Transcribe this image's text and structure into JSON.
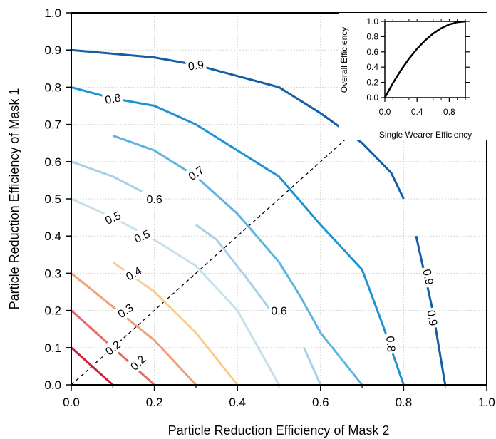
{
  "chart_data": [
    {
      "type": "line",
      "subtype": "contour",
      "xlabel": "Particle Reduction Efficiency of Mask 2",
      "ylabel": "Particle Reduction Efficiency of Mask 1",
      "xlim": [
        0,
        1
      ],
      "ylim": [
        0,
        1
      ],
      "x_ticks": [
        "0.0",
        "0.2",
        "0.4",
        "0.6",
        "0.8",
        "1.0"
      ],
      "y_ticks": [
        "0.0",
        "0.1",
        "0.2",
        "0.3",
        "0.4",
        "0.5",
        "0.6",
        "0.7",
        "0.8",
        "0.9",
        "1.0"
      ],
      "grid": true,
      "diagonal_reference": {
        "style": "dashed",
        "color": "#000000",
        "from": [
          0,
          0
        ],
        "to": [
          0.7,
          0.7
        ]
      },
      "series": [
        {
          "level": "0.1",
          "color": "#c8223a",
          "points": [
            [
              0.0,
              0.1
            ],
            [
              0.1,
              0.0
            ]
          ]
        },
        {
          "level": "0.2",
          "color": "#e26a62",
          "points": [
            [
              0.0,
              0.2
            ],
            [
              0.2,
              0.0
            ]
          ]
        },
        {
          "level": "0.3",
          "color": "#f0a07a",
          "points": [
            [
              0.0,
              0.3
            ],
            [
              0.1,
              0.21
            ],
            [
              0.2,
              0.12
            ],
            [
              0.3,
              0.0
            ]
          ]
        },
        {
          "level": "0.4",
          "color": "#f8ce90",
          "points": [
            [
              0.1,
              0.33
            ],
            [
              0.2,
              0.25
            ],
            [
              0.3,
              0.14
            ],
            [
              0.4,
              0.0
            ]
          ]
        },
        {
          "level": "0.5",
          "color": "#c6e1ee",
          "points": [
            [
              0.0,
              0.5
            ],
            [
              0.1,
              0.45
            ],
            [
              0.2,
              0.39
            ],
            [
              0.3,
              0.32
            ],
            [
              0.4,
              0.2
            ],
            [
              0.5,
              0.0
            ]
          ]
        },
        {
          "level": "0.6",
          "color": "#a6d1e8",
          "points": [
            [
              0.0,
              0.6
            ],
            [
              0.1,
              0.56
            ],
            [
              0.17,
              0.52
            ]
          ]
        },
        {
          "level": "0.6",
          "color": "#a6d1e8",
          "points": [
            [
              0.3,
              0.43
            ],
            [
              0.35,
              0.39
            ],
            [
              0.42,
              0.29
            ],
            [
              0.48,
              0.2
            ]
          ]
        },
        {
          "level": "0.6",
          "color": "#a6d1e8",
          "points": [
            [
              0.56,
              0.1
            ],
            [
              0.6,
              0.0
            ]
          ]
        },
        {
          "level": "0.7",
          "color": "#5db4e0",
          "points": [
            [
              0.1,
              0.67
            ],
            [
              0.2,
              0.63
            ],
            [
              0.3,
              0.56
            ],
            [
              0.4,
              0.46
            ],
            [
              0.5,
              0.33
            ],
            [
              0.55,
              0.24
            ],
            [
              0.6,
              0.14
            ],
            [
              0.65,
              0.07
            ],
            [
              0.7,
              0.0
            ]
          ]
        },
        {
          "level": "0.8",
          "color": "#1f92d2",
          "points": [
            [
              0.0,
              0.8
            ],
            [
              0.1,
              0.77
            ],
            [
              0.2,
              0.75
            ],
            [
              0.3,
              0.7
            ],
            [
              0.4,
              0.63
            ],
            [
              0.5,
              0.56
            ],
            [
              0.6,
              0.43
            ],
            [
              0.7,
              0.31
            ],
            [
              0.75,
              0.16
            ],
            [
              0.8,
              0.0
            ]
          ]
        },
        {
          "level": "0.9",
          "color": "#135ea5",
          "points": [
            [
              0.0,
              0.9
            ],
            [
              0.1,
              0.89
            ],
            [
              0.2,
              0.88
            ],
            [
              0.3,
              0.86
            ],
            [
              0.4,
              0.83
            ],
            [
              0.5,
              0.8
            ],
            [
              0.6,
              0.73
            ],
            [
              0.7,
              0.65
            ],
            [
              0.77,
              0.57
            ],
            [
              0.8,
              0.5
            ]
          ]
        },
        {
          "level": "0.9",
          "color": "#135ea5",
          "points": [
            [
              0.83,
              0.4
            ],
            [
              0.87,
              0.2
            ],
            [
              0.9,
              0.0
            ]
          ]
        }
      ],
      "contour_labels": [
        {
          "text": "0.9",
          "x": 0.3,
          "y": 0.86,
          "angle": -8
        },
        {
          "text": "0.8",
          "x": 0.1,
          "y": 0.77,
          "angle": -10
        },
        {
          "text": "0.7",
          "x": 0.3,
          "y": 0.57,
          "angle": -35
        },
        {
          "text": "0.6",
          "x": 0.2,
          "y": 0.5,
          "angle": 0
        },
        {
          "text": "0.6",
          "x": 0.5,
          "y": 0.2,
          "angle": 0
        },
        {
          "text": "0.5",
          "x": 0.1,
          "y": 0.45,
          "angle": -25
        },
        {
          "text": "0.5",
          "x": 0.17,
          "y": 0.4,
          "angle": -25
        },
        {
          "text": "0.4",
          "x": 0.15,
          "y": 0.3,
          "angle": -30
        },
        {
          "text": "0.3",
          "x": 0.13,
          "y": 0.2,
          "angle": -35
        },
        {
          "text": "0.2",
          "x": 0.1,
          "y": 0.1,
          "angle": -40
        },
        {
          "text": "0.2",
          "x": 0.16,
          "y": 0.06,
          "angle": -45
        },
        {
          "text": "0.8",
          "x": 0.77,
          "y": 0.11,
          "angle": 85
        },
        {
          "text": "0.9",
          "x": 0.86,
          "y": 0.29,
          "angle": 78
        },
        {
          "text": "0.9",
          "x": 0.87,
          "y": 0.18,
          "angle": 80
        }
      ]
    },
    {
      "type": "line",
      "role": "inset",
      "xlabel": "Single Wearer Efficiency",
      "ylabel": "Overall Efficiency",
      "xlim": [
        0,
        1
      ],
      "ylim": [
        0,
        1
      ],
      "x_ticks": [
        "0.0",
        "0.4",
        "0.8"
      ],
      "y_ticks": [
        "0.0",
        "0.2",
        "0.4",
        "0.6",
        "0.8",
        "1.0"
      ],
      "grid": false,
      "series": [
        {
          "color": "#000000",
          "x": [
            0,
            0.1,
            0.2,
            0.3,
            0.4,
            0.5,
            0.6,
            0.7,
            0.8,
            0.9,
            1.0
          ],
          "y": [
            0,
            0.19,
            0.36,
            0.51,
            0.64,
            0.75,
            0.84,
            0.91,
            0.96,
            0.99,
            1.0
          ]
        }
      ]
    }
  ]
}
